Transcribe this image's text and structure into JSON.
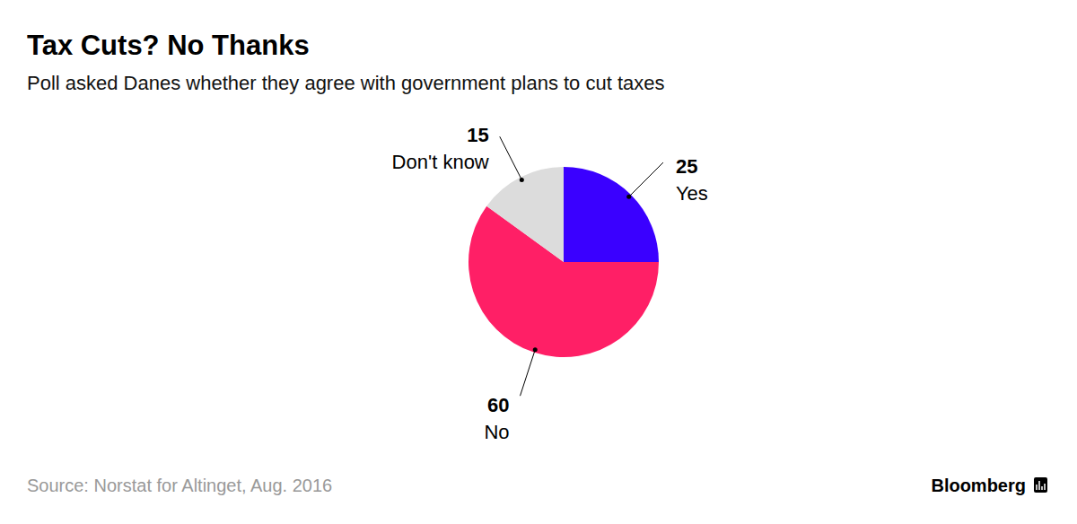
{
  "chart_data": {
    "type": "pie",
    "title": "Tax Cuts? No Thanks",
    "subtitle": "Poll asked Danes whether they agree with government plans to cut taxes",
    "categories": [
      "Yes",
      "No",
      "Don't know"
    ],
    "values": [
      25,
      60,
      15
    ],
    "colors": [
      "#3a00ff",
      "#ff1f66",
      "#dcdcdc"
    ],
    "data_labels": true,
    "source": "Source: Norstat for Altinget, Aug. 2016",
    "credit": "Bloomberg"
  }
}
